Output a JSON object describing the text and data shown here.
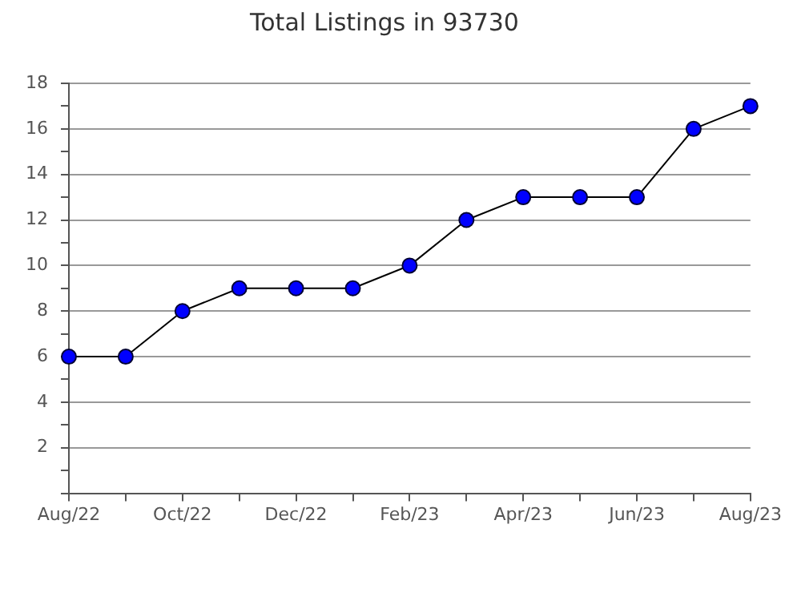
{
  "chart_data": {
    "type": "line",
    "title": "Total Listings in 93730",
    "categories": [
      "Aug/22",
      null,
      "Oct/22",
      null,
      "Dec/22",
      null,
      "Feb/23",
      null,
      "Apr/23",
      null,
      "Jun/23",
      null,
      "Aug/23"
    ],
    "series": [
      {
        "color": "#0000ff",
        "values": [
          6,
          6,
          8,
          9,
          9,
          9,
          10,
          12,
          13,
          13,
          13,
          16,
          17
        ]
      }
    ],
    "ylim": [
      0,
      18
    ],
    "yticks": [
      {
        "value": 0,
        "label": null
      },
      {
        "value": 1,
        "label": null
      },
      2,
      {
        "value": 3,
        "label": null
      },
      4,
      {
        "value": 5,
        "label": null
      },
      6,
      {
        "value": 7,
        "label": null
      },
      8,
      {
        "value": 9,
        "label": null
      },
      10,
      {
        "value": 11,
        "label": null
      },
      12,
      {
        "value": 13,
        "label": null
      },
      14,
      {
        "value": 15,
        "label": null
      },
      16,
      {
        "value": 17,
        "label": null
      },
      18
    ],
    "grid": "y",
    "legend": false,
    "marker": "circle",
    "line_style": "solid"
  }
}
